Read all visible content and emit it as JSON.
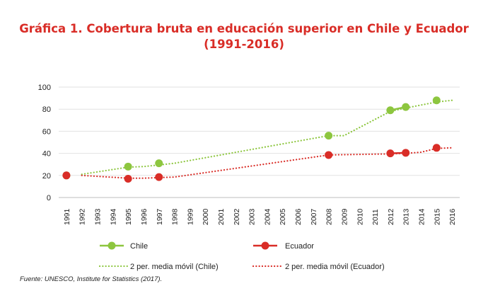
{
  "title": {
    "line1": "Gráfica 1. Cobertura bruta en educación superior en Chile y Ecuador",
    "line2": "(1991-2016)"
  },
  "source": "Fuente: UNESCO, Institute for Statistics (2017).",
  "chart_data": {
    "type": "line",
    "title": "Gráfica 1. Cobertura bruta en educación superior en Chile y Ecuador (1991-2016)",
    "xlabel": "",
    "ylabel": "",
    "ylim": [
      0,
      100
    ],
    "yticks": [
      0,
      20,
      40,
      60,
      80,
      100
    ],
    "categories": [
      "1991",
      "1992",
      "1993",
      "1994",
      "1995",
      "1996",
      "1997",
      "1998",
      "1999",
      "2000",
      "2001",
      "2002",
      "2003",
      "2004",
      "2005",
      "2006",
      "2007",
      "2008",
      "2009",
      "2010",
      "2011",
      "2012",
      "2013",
      "2014",
      "2015",
      "2016"
    ],
    "grid": "horizontal",
    "legend_position": "bottom",
    "colors": {
      "chile": "#8dc63f",
      "ecuador": "#d92d27"
    },
    "series": [
      {
        "name": "Chile",
        "type": "markers",
        "color": "#8dc63f",
        "points": [
          {
            "x": "1991",
            "y": 20
          },
          {
            "x": "1995",
            "y": 28
          },
          {
            "x": "1997",
            "y": 31
          },
          {
            "x": "2008",
            "y": 56
          },
          {
            "x": "2012",
            "y": 79
          },
          {
            "x": "2013",
            "y": 82
          },
          {
            "x": "2015",
            "y": 88
          }
        ]
      },
      {
        "name": "Ecuador",
        "type": "markers",
        "color": "#d92d27",
        "points": [
          {
            "x": "1991",
            "y": 20
          },
          {
            "x": "1995",
            "y": 17
          },
          {
            "x": "1997",
            "y": 18.5
          },
          {
            "x": "2008",
            "y": 38.5
          },
          {
            "x": "2012",
            "y": 40
          },
          {
            "x": "2013",
            "y": 40.5
          },
          {
            "x": "2015",
            "y": 45
          }
        ]
      },
      {
        "name": "2 per. media móvil (Chile)",
        "type": "dotted",
        "color": "#8dc63f",
        "points": [
          {
            "x": "1992",
            "y": 21
          },
          {
            "x": "1995",
            "y": 27.5
          },
          {
            "x": "1996",
            "y": 28
          },
          {
            "x": "1997",
            "y": 29.5
          },
          {
            "x": "1998",
            "y": 31
          },
          {
            "x": "2008",
            "y": 56
          },
          {
            "x": "2009",
            "y": 56
          },
          {
            "x": "2012",
            "y": 78
          },
          {
            "x": "2013",
            "y": 81
          },
          {
            "x": "2015",
            "y": 86.5
          },
          {
            "x": "2016",
            "y": 88
          }
        ]
      },
      {
        "name": "2 per. media móvil (Ecuador)",
        "type": "dotted",
        "color": "#d92d27",
        "points": [
          {
            "x": "1992",
            "y": 20
          },
          {
            "x": "1995",
            "y": 17.5
          },
          {
            "x": "1996",
            "y": 17.5
          },
          {
            "x": "1997",
            "y": 18
          },
          {
            "x": "1998",
            "y": 18.5
          },
          {
            "x": "2008",
            "y": 38.5
          },
          {
            "x": "2012",
            "y": 39.5
          },
          {
            "x": "2013",
            "y": 40
          },
          {
            "x": "2014",
            "y": 41
          },
          {
            "x": "2015",
            "y": 44.5
          },
          {
            "x": "2016",
            "y": 45
          }
        ]
      }
    ],
    "legend": [
      {
        "label": "Chile",
        "series": 0
      },
      {
        "label": "Ecuador",
        "series": 1
      },
      {
        "label": "2 per. media móvil (Chile)",
        "series": 2
      },
      {
        "label": "2 per. media móvil (Ecuador)",
        "series": 3
      }
    ]
  }
}
